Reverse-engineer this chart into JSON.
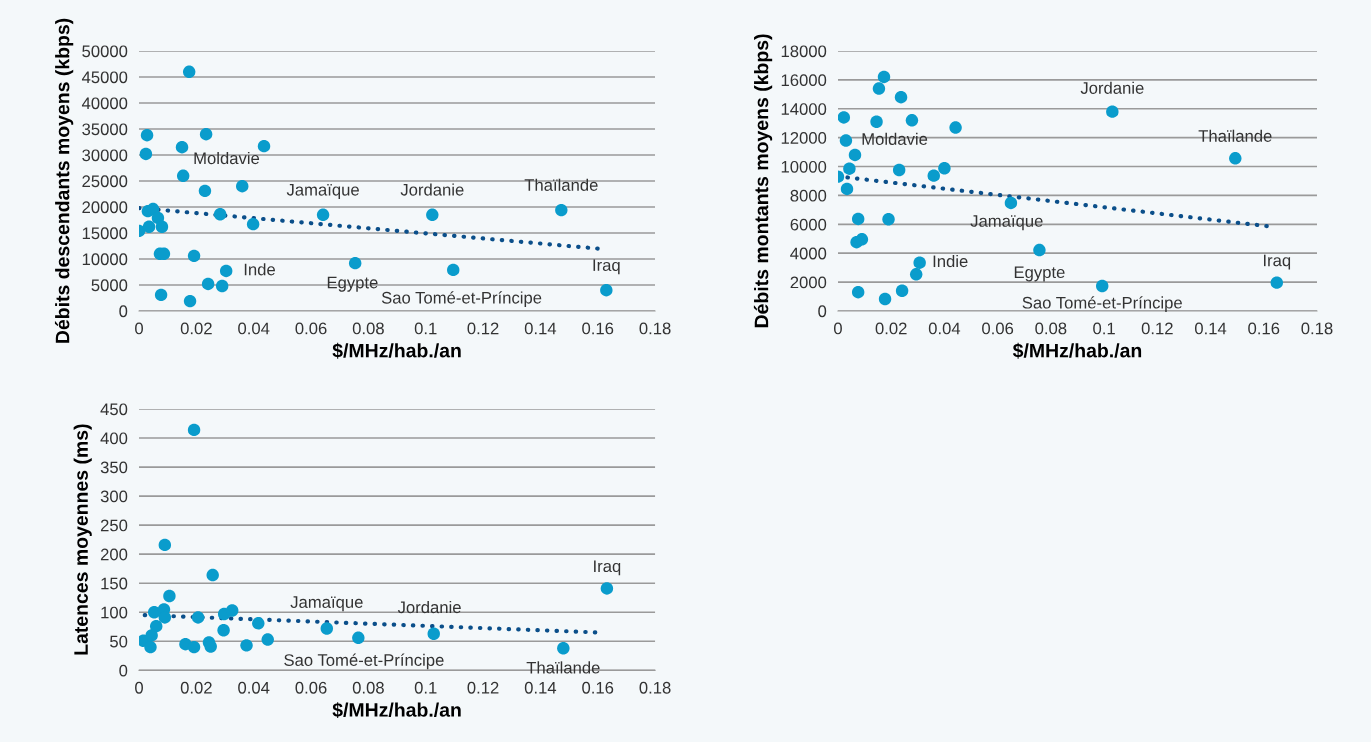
{
  "chart_data": [
    {
      "type": "scatter",
      "xlabel": "$/MHz/hab./an",
      "ylabel": "Débits descendants moyens (kbps)",
      "xlim": [
        0,
        0.18
      ],
      "xticks": [
        0,
        0.02,
        0.04,
        0.06,
        0.08,
        0.1,
        0.12,
        0.14,
        0.16,
        0.18
      ],
      "ylim": [
        0,
        50000
      ],
      "yticks": [
        0,
        5000,
        10000,
        15000,
        20000,
        25000,
        30000,
        35000,
        40000,
        45000,
        50000
      ],
      "grid": "y",
      "marker": "circle",
      "series": [
        {
          "color": "#0a9ccc",
          "x": [
            0.0,
            0.0028,
            0.0024,
            0.0031,
            0.0049,
            0.0035,
            0.0066,
            0.008,
            0.0073,
            0.0087,
            0.0077,
            0.0175,
            0.015,
            0.0154,
            0.0234,
            0.023,
            0.0283,
            0.0192,
            0.0304,
            0.0241,
            0.029,
            0.0178,
            0.036,
            0.0398,
            0.0436,
            0.0642,
            0.0754,
            0.1023,
            0.1096,
            0.1473,
            0.163
          ],
          "values": [
            15400,
            33800,
            30200,
            19200,
            19600,
            16200,
            17900,
            16200,
            11000,
            11000,
            3100,
            46000,
            31500,
            26000,
            34000,
            23100,
            18600,
            10600,
            7700,
            5200,
            4800,
            1900,
            24000,
            16700,
            31700,
            18500,
            9200,
            18500,
            7900,
            19400,
            4000
          ]
        },
        {
          "type": "line",
          "color": "#0b4f8a",
          "line_style": "dotted",
          "marker": "none",
          "x": [
            0.0,
            0.162
          ],
          "values": [
            19800,
            11900
          ]
        }
      ],
      "annotations": [
        {
          "text": "Moldavie",
          "x": 0.015,
          "y": 31500
        },
        {
          "text": "Inde",
          "x": 0.0304,
          "y": 7700
        },
        {
          "text": "Jamaïque",
          "x": 0.0642,
          "y": 18500
        },
        {
          "text": "Jordanie",
          "x": 0.1023,
          "y": 18500
        },
        {
          "text": "Thaïlande",
          "x": 0.1473,
          "y": 19400
        },
        {
          "text": "Egypte",
          "x": 0.0754,
          "y": 9200
        },
        {
          "text": "Sao Tomé-et-Príncipe",
          "x": 0.1096,
          "y": 7900
        },
        {
          "text": "Iraq",
          "x": 0.163,
          "y": 4000
        }
      ]
    },
    {
      "type": "scatter",
      "xlabel": "$/MHz/hab./an",
      "ylabel": "Débits montants moyens (kbps)",
      "xlim": [
        0,
        0.18
      ],
      "xticks": [
        0,
        0.02,
        0.04,
        0.06,
        0.08,
        0.1,
        0.12,
        0.14,
        0.16,
        0.18
      ],
      "ylim": [
        0,
        18000
      ],
      "yticks": [
        0,
        2000,
        4000,
        6000,
        8000,
        10000,
        12000,
        14000,
        16000,
        18000
      ],
      "grid": "y",
      "marker": "circle",
      "series": [
        {
          "color": "#0a9ccc",
          "x": [
            0.0,
            0.0022,
            0.003,
            0.0064,
            0.0043,
            0.0034,
            0.0076,
            0.007,
            0.009,
            0.0076,
            0.0173,
            0.0154,
            0.0237,
            0.0145,
            0.0278,
            0.0442,
            0.023,
            0.036,
            0.04,
            0.019,
            0.0307,
            0.0294,
            0.0241,
            0.0177,
            0.065,
            0.0757,
            0.0993,
            0.1031,
            0.1493,
            0.1649
          ],
          "values": [
            9300,
            13400,
            11800,
            10800,
            9850,
            8450,
            6370,
            4760,
            4960,
            1300,
            16200,
            15400,
            14800,
            13100,
            13200,
            12700,
            9760,
            9370,
            9880,
            6350,
            3340,
            2540,
            1400,
            830,
            7480,
            4220,
            1730,
            13800,
            10570,
            1960
          ]
        },
        {
          "type": "line",
          "color": "#0b4f8a",
          "line_style": "dotted",
          "marker": "none",
          "x": [
            0.0,
            0.1628
          ],
          "values": [
            9320,
            5840
          ]
        }
      ],
      "annotations": [
        {
          "text": "Moldavie",
          "x": 0.003,
          "y": 11800
        },
        {
          "text": "Jordanie",
          "x": 0.1031,
          "y": 13800
        },
        {
          "text": "Thaïlande",
          "x": 0.1493,
          "y": 10570
        },
        {
          "text": "Jamaïque",
          "x": 0.065,
          "y": 7480
        },
        {
          "text": "Indie",
          "x": 0.0307,
          "y": 3340
        },
        {
          "text": "Egypte",
          "x": 0.0757,
          "y": 4220
        },
        {
          "text": "Sao Tomé-et-Príncipe",
          "x": 0.0993,
          "y": 1730
        },
        {
          "text": "Iraq",
          "x": 0.1649,
          "y": 1960
        }
      ]
    },
    {
      "type": "scatter",
      "xlabel": "$/MHz/hab./an",
      "ylabel": "Latences moyennes (ms)",
      "xlim": [
        0,
        0.18
      ],
      "xticks": [
        0,
        0.02,
        0.04,
        0.06,
        0.08,
        0.1,
        0.12,
        0.14,
        0.16,
        0.18
      ],
      "ylim": [
        0,
        450
      ],
      "yticks": [
        0,
        50,
        100,
        150,
        200,
        250,
        300,
        350,
        400,
        450
      ],
      "grid": "y",
      "marker": "circle",
      "series": [
        {
          "color": "#0a9ccc",
          "x": [
            0.0015,
            0.004,
            0.0044,
            0.0053,
            0.006,
            0.0087,
            0.009,
            0.009,
            0.0106,
            0.0192,
            0.0162,
            0.0192,
            0.0206,
            0.0257,
            0.0244,
            0.025,
            0.0295,
            0.0297,
            0.0325,
            0.0375,
            0.0416,
            0.0449,
            0.0655,
            0.0765,
            0.1028,
            0.148,
            0.1632
          ],
          "values": [
            51,
            40,
            60,
            100,
            76,
            105,
            91,
            216,
            128,
            414,
            45,
            40,
            91,
            164,
            48,
            41,
            69,
            97,
            103,
            43,
            81,
            53,
            72,
            56,
            63,
            38,
            141
          ]
        },
        {
          "type": "line",
          "color": "#0b4f8a",
          "line_style": "dotted",
          "marker": "none",
          "x": [
            0.002,
            0.161
          ],
          "values": [
            95,
            65
          ]
        }
      ],
      "annotations": [
        {
          "text": "Jamaïque",
          "x": 0.0655,
          "y": 72
        },
        {
          "text": "Sao Tomé-et-Príncipe",
          "x": 0.0765,
          "y": 56
        },
        {
          "text": "Jordanie",
          "x": 0.1028,
          "y": 63
        },
        {
          "text": "Thaïlande",
          "x": 0.148,
          "y": 38
        },
        {
          "text": "Iraq",
          "x": 0.1632,
          "y": 141
        }
      ]
    }
  ]
}
